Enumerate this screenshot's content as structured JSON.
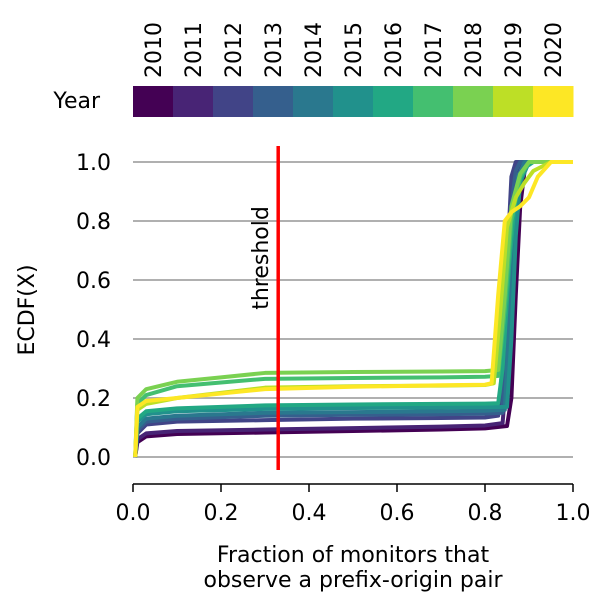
{
  "chart_data": {
    "type": "line",
    "xlabel_lines": [
      "Fraction of monitors that",
      "observe a prefix-origin pair"
    ],
    "ylabel": "ECDF(X)",
    "xlim": [
      0.0,
      1.0
    ],
    "ylim": [
      0.0,
      1.0
    ],
    "x_ticks": [
      0.0,
      0.2,
      0.4,
      0.6,
      0.8,
      1.0
    ],
    "x_tick_labels": [
      "0.0",
      "0.2",
      "0.4",
      "0.6",
      "0.8",
      "1.0"
    ],
    "y_ticks": [
      0.0,
      0.2,
      0.4,
      0.6,
      0.8,
      1.0
    ],
    "y_tick_labels": [
      "0.0",
      "0.2",
      "0.4",
      "0.6",
      "0.8",
      "1.0"
    ],
    "grid": "horizontal",
    "colorbar": {
      "label": "Year",
      "years": [
        "2010",
        "2011",
        "2012",
        "2013",
        "2014",
        "2015",
        "2016",
        "2017",
        "2018",
        "2019",
        "2020"
      ],
      "colors": [
        "#440154",
        "#482475",
        "#414487",
        "#355f8d",
        "#2a788e",
        "#21918c",
        "#22a884",
        "#44bf70",
        "#7ad151",
        "#bddf26",
        "#fde725"
      ]
    },
    "threshold": {
      "x": 0.33,
      "label": "threshold",
      "color": "#ff0000"
    },
    "series": [
      {
        "name": "2010",
        "color": "#440154",
        "points": [
          [
            0.005,
            0
          ],
          [
            0.01,
            0.05
          ],
          [
            0.03,
            0.07
          ],
          [
            0.1,
            0.078
          ],
          [
            0.3,
            0.083
          ],
          [
            0.5,
            0.088
          ],
          [
            0.7,
            0.093
          ],
          [
            0.8,
            0.097
          ],
          [
            0.85,
            0.105
          ],
          [
            0.86,
            0.2
          ],
          [
            0.87,
            0.55
          ],
          [
            0.88,
            0.85
          ],
          [
            0.89,
            0.97
          ],
          [
            0.9,
            1.0
          ],
          [
            1.0,
            1.0
          ]
        ]
      },
      {
        "name": "2011",
        "color": "#482475",
        "points": [
          [
            0.005,
            0
          ],
          [
            0.01,
            0.06
          ],
          [
            0.03,
            0.08
          ],
          [
            0.1,
            0.088
          ],
          [
            0.3,
            0.093
          ],
          [
            0.5,
            0.098
          ],
          [
            0.7,
            0.103
          ],
          [
            0.8,
            0.107
          ],
          [
            0.84,
            0.115
          ],
          [
            0.85,
            0.3
          ],
          [
            0.86,
            0.7
          ],
          [
            0.87,
            0.92
          ],
          [
            0.88,
            1.0
          ],
          [
            1.0,
            1.0
          ]
        ]
      },
      {
        "name": "2012",
        "color": "#414487",
        "points": [
          [
            0.005,
            0
          ],
          [
            0.01,
            0.08
          ],
          [
            0.03,
            0.11
          ],
          [
            0.1,
            0.12
          ],
          [
            0.3,
            0.125
          ],
          [
            0.5,
            0.13
          ],
          [
            0.7,
            0.132
          ],
          [
            0.8,
            0.134
          ],
          [
            0.83,
            0.14
          ],
          [
            0.845,
            0.4
          ],
          [
            0.855,
            0.8
          ],
          [
            0.86,
            0.95
          ],
          [
            0.87,
            1.0
          ],
          [
            1.0,
            1.0
          ]
        ]
      },
      {
        "name": "2013",
        "color": "#355f8d",
        "points": [
          [
            0.005,
            0
          ],
          [
            0.01,
            0.09
          ],
          [
            0.03,
            0.12
          ],
          [
            0.1,
            0.13
          ],
          [
            0.3,
            0.14
          ],
          [
            0.5,
            0.143
          ],
          [
            0.7,
            0.145
          ],
          [
            0.8,
            0.147
          ],
          [
            0.84,
            0.15
          ],
          [
            0.85,
            0.5
          ],
          [
            0.86,
            0.85
          ],
          [
            0.87,
            0.97
          ],
          [
            0.88,
            1.0
          ],
          [
            1.0,
            1.0
          ]
        ]
      },
      {
        "name": "2014",
        "color": "#2a788e",
        "points": [
          [
            0.005,
            0
          ],
          [
            0.01,
            0.1
          ],
          [
            0.03,
            0.13
          ],
          [
            0.1,
            0.14
          ],
          [
            0.3,
            0.15
          ],
          [
            0.5,
            0.152
          ],
          [
            0.7,
            0.155
          ],
          [
            0.8,
            0.157
          ],
          [
            0.845,
            0.16
          ],
          [
            0.855,
            0.45
          ],
          [
            0.865,
            0.8
          ],
          [
            0.875,
            0.95
          ],
          [
            0.89,
            1.0
          ],
          [
            1.0,
            1.0
          ]
        ]
      },
      {
        "name": "2015",
        "color": "#21918c",
        "points": [
          [
            0.005,
            0
          ],
          [
            0.01,
            0.12
          ],
          [
            0.03,
            0.145
          ],
          [
            0.1,
            0.155
          ],
          [
            0.3,
            0.163
          ],
          [
            0.5,
            0.166
          ],
          [
            0.7,
            0.168
          ],
          [
            0.8,
            0.169
          ],
          [
            0.85,
            0.17
          ],
          [
            0.86,
            0.4
          ],
          [
            0.87,
            0.75
          ],
          [
            0.88,
            0.93
          ],
          [
            0.9,
            1.0
          ],
          [
            1.0,
            1.0
          ]
        ]
      },
      {
        "name": "2016",
        "color": "#22a884",
        "points": [
          [
            0.005,
            0
          ],
          [
            0.01,
            0.13
          ],
          [
            0.03,
            0.155
          ],
          [
            0.1,
            0.165
          ],
          [
            0.3,
            0.175
          ],
          [
            0.5,
            0.178
          ],
          [
            0.7,
            0.18
          ],
          [
            0.8,
            0.181
          ],
          [
            0.83,
            0.182
          ],
          [
            0.84,
            0.3
          ],
          [
            0.855,
            0.65
          ],
          [
            0.87,
            0.9
          ],
          [
            0.89,
            0.98
          ],
          [
            0.91,
            1.0
          ],
          [
            1.0,
            1.0
          ]
        ]
      },
      {
        "name": "2017",
        "color": "#44bf70",
        "points": [
          [
            0.005,
            0
          ],
          [
            0.01,
            0.18
          ],
          [
            0.03,
            0.21
          ],
          [
            0.1,
            0.24
          ],
          [
            0.3,
            0.265
          ],
          [
            0.5,
            0.268
          ],
          [
            0.7,
            0.27
          ],
          [
            0.8,
            0.272
          ],
          [
            0.83,
            0.275
          ],
          [
            0.845,
            0.5
          ],
          [
            0.86,
            0.8
          ],
          [
            0.88,
            0.95
          ],
          [
            0.9,
            1.0
          ],
          [
            1.0,
            1.0
          ]
        ]
      },
      {
        "name": "2018",
        "color": "#7ad151",
        "points": [
          [
            0.005,
            0
          ],
          [
            0.01,
            0.2
          ],
          [
            0.03,
            0.23
          ],
          [
            0.1,
            0.255
          ],
          [
            0.2,
            0.27
          ],
          [
            0.3,
            0.285
          ],
          [
            0.5,
            0.288
          ],
          [
            0.7,
            0.29
          ],
          [
            0.8,
            0.291
          ],
          [
            0.83,
            0.295
          ],
          [
            0.845,
            0.55
          ],
          [
            0.86,
            0.85
          ],
          [
            0.88,
            0.96
          ],
          [
            0.9,
            1.0
          ],
          [
            1.0,
            1.0
          ]
        ]
      },
      {
        "name": "2019",
        "color": "#bddf26",
        "points": [
          [
            0.005,
            0
          ],
          [
            0.01,
            0.16
          ],
          [
            0.03,
            0.18
          ],
          [
            0.1,
            0.2
          ],
          [
            0.3,
            0.235
          ],
          [
            0.5,
            0.24
          ],
          [
            0.7,
            0.242
          ],
          [
            0.8,
            0.244
          ],
          [
            0.82,
            0.25
          ],
          [
            0.835,
            0.5
          ],
          [
            0.85,
            0.78
          ],
          [
            0.87,
            0.88
          ],
          [
            0.89,
            0.93
          ],
          [
            0.91,
            0.97
          ],
          [
            0.95,
            1.0
          ],
          [
            1.0,
            1.0
          ]
        ]
      },
      {
        "name": "2020",
        "color": "#fde725",
        "points": [
          [
            0.005,
            0
          ],
          [
            0.01,
            0.17
          ],
          [
            0.03,
            0.19
          ],
          [
            0.1,
            0.2
          ],
          [
            0.2,
            0.215
          ],
          [
            0.3,
            0.23
          ],
          [
            0.5,
            0.238
          ],
          [
            0.7,
            0.243
          ],
          [
            0.8,
            0.245
          ],
          [
            0.815,
            0.25
          ],
          [
            0.83,
            0.55
          ],
          [
            0.845,
            0.8
          ],
          [
            0.86,
            0.83
          ],
          [
            0.88,
            0.85
          ],
          [
            0.9,
            0.88
          ],
          [
            0.92,
            0.95
          ],
          [
            0.95,
            1.0
          ],
          [
            1.0,
            1.0
          ]
        ]
      }
    ]
  }
}
